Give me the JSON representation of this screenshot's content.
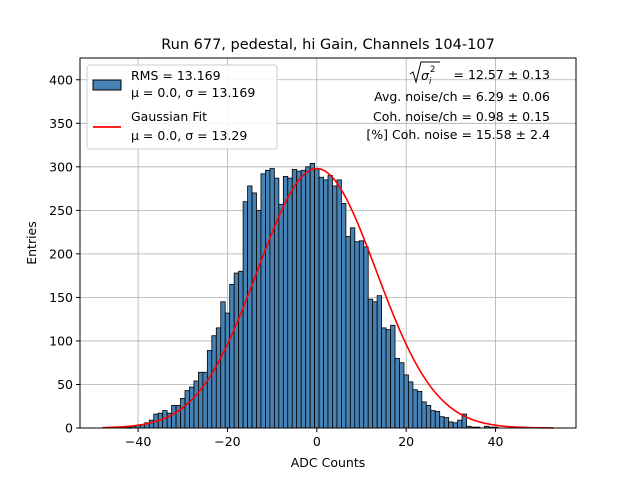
{
  "chart_data": {
    "type": "bar",
    "title": "Run 677, pedestal, hi Gain, Channels 104-107",
    "xlabel": "ADC Counts",
    "ylabel": "Entries",
    "xlim": [
      -53,
      58
    ],
    "ylim": [
      0,
      425
    ],
    "xticks": [
      -40,
      -20,
      0,
      20,
      40
    ],
    "yticks": [
      0,
      50,
      100,
      150,
      200,
      250,
      300,
      350,
      400
    ],
    "grid": true,
    "legend_position": "top-left",
    "bin_width": 1,
    "bin_centers": [
      -48,
      -47,
      -46,
      -45,
      -44,
      -43,
      -42,
      -41,
      -40,
      -39,
      -38,
      -37,
      -36,
      -35,
      -34,
      -33,
      -32,
      -31,
      -30,
      -29,
      -28,
      -27,
      -26,
      -25,
      -24,
      -23,
      -22,
      -21,
      -20,
      -19,
      -18,
      -17,
      -16,
      -15,
      -14,
      -13,
      -12,
      -11,
      -10,
      -9,
      -8,
      -7,
      -6,
      -5,
      -4,
      -3,
      -2,
      -1,
      0,
      1,
      2,
      3,
      4,
      5,
      6,
      7,
      8,
      9,
      10,
      11,
      12,
      13,
      14,
      15,
      16,
      17,
      18,
      19,
      20,
      21,
      22,
      23,
      24,
      25,
      26,
      27,
      28,
      29,
      30,
      31,
      32,
      33,
      34,
      35,
      36,
      37,
      38,
      39,
      40,
      41,
      42,
      43,
      44,
      45,
      46,
      47,
      48,
      49,
      50,
      51,
      52,
      53
    ],
    "counts": [
      0,
      0,
      0,
      0,
      0,
      1,
      1,
      2,
      3,
      4,
      6,
      9,
      16,
      17,
      20,
      17,
      26,
      26,
      34,
      43,
      47,
      54,
      64,
      64,
      89,
      106,
      115,
      145,
      132,
      165,
      178,
      180,
      260,
      278,
      270,
      250,
      292,
      296,
      298,
      287,
      257,
      289,
      287,
      297,
      295,
      296,
      300,
      304,
      298,
      288,
      285,
      290,
      278,
      285,
      258,
      220,
      230,
      214,
      215,
      208,
      148,
      145,
      152,
      115,
      113,
      118,
      80,
      75,
      61,
      53,
      44,
      42,
      30,
      26,
      20,
      19,
      13,
      12,
      7,
      6,
      9,
      16,
      2,
      1,
      1,
      0,
      2,
      1,
      1,
      0,
      0,
      0,
      0,
      0,
      0,
      0,
      0,
      0,
      0,
      0,
      0,
      0
    ],
    "series": [
      {
        "name": "RMS = 13.169",
        "name2": "μ = 0.0, σ = 13.169",
        "color": "#4682b4",
        "edge_color": "#000000"
      },
      {
        "name": "Gaussian Fit",
        "name2": "μ = 0.0, σ = 13.29",
        "color": "#ff0000",
        "mu": 0.0,
        "sigma": 13.29,
        "amplitude": 298,
        "x_range": [
          -48,
          53
        ]
      }
    ],
    "annotations": [
      "= 12.57 ± 0.13",
      "Avg. noise/ch = 6.29 ± 0.06",
      "Coh. noise/ch = 0.98 ± 0.15",
      "[%] Coh. noise = 15.58 ± 2.4"
    ],
    "annotation_symbol": "σ",
    "annotation_symbol_sub": "i",
    "annotation_symbol_sup": "2"
  }
}
